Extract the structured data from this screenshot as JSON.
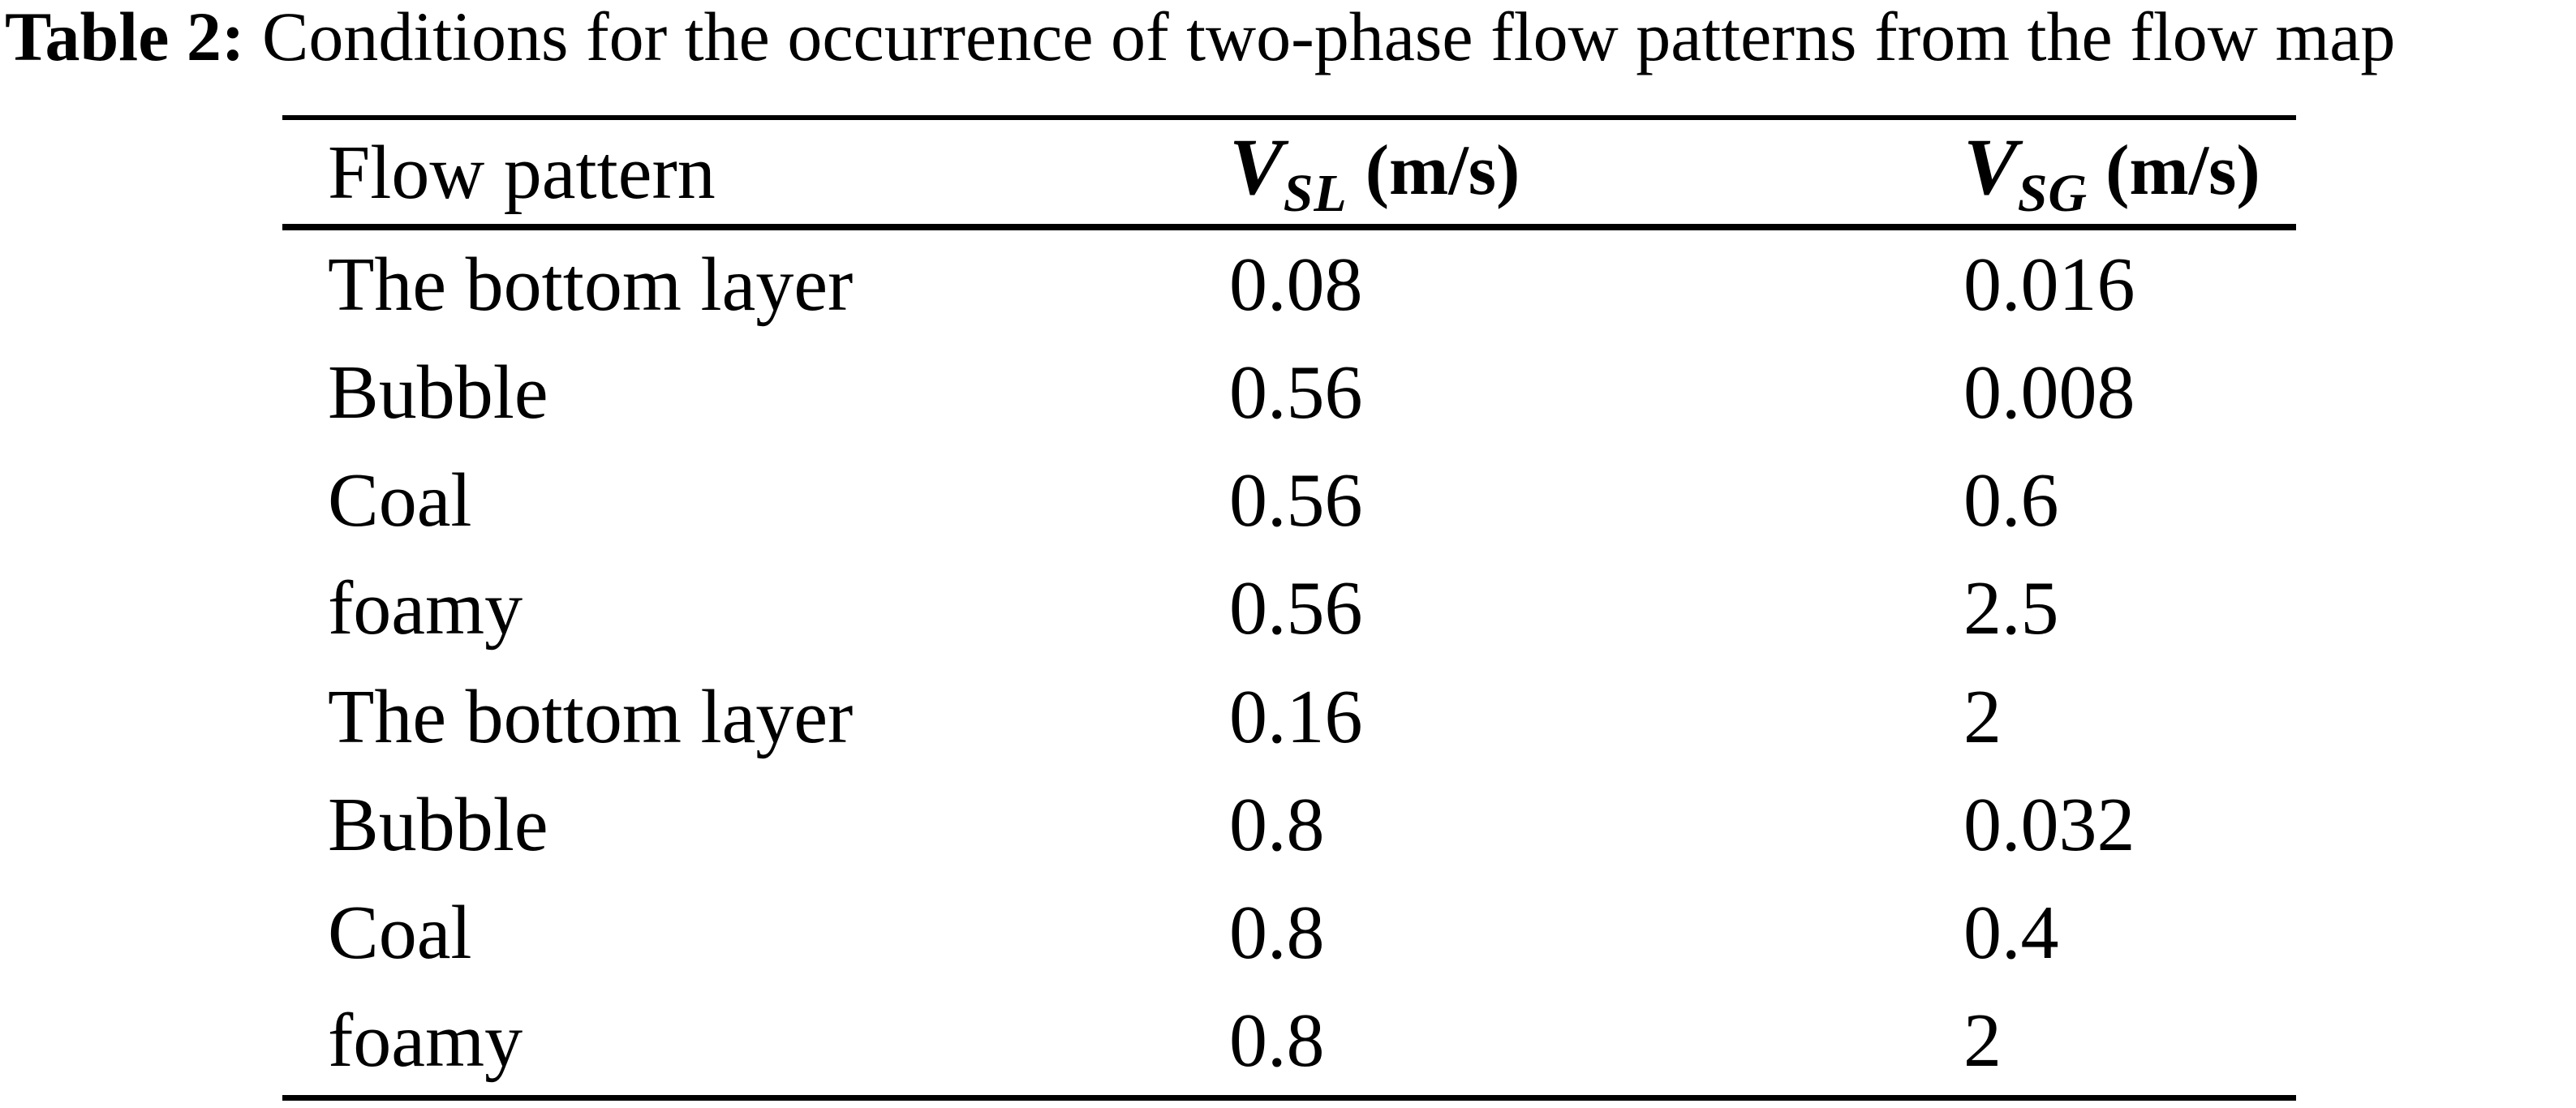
{
  "caption": {
    "label": "Table 2:",
    "text": " Conditions for the occurrence of two-phase flow patterns from the flow map"
  },
  "table": {
    "headers": {
      "col1": "Flow pattern",
      "col2": {
        "symbol": "V",
        "subscript": "SL",
        "unit": "(m/s)"
      },
      "col3": {
        "symbol": "V",
        "subscript": "SG",
        "unit": "(m/s)"
      }
    },
    "rows": [
      {
        "pattern": "The bottom layer",
        "vsl": "0.08",
        "vsg": "0.016"
      },
      {
        "pattern": "Bubble",
        "vsl": "0.56",
        "vsg": "0.008"
      },
      {
        "pattern": "Coal",
        "vsl": "0.56",
        "vsg": "0.6"
      },
      {
        "pattern": "foamy",
        "vsl": "0.56",
        "vsg": "2.5"
      },
      {
        "pattern": "The bottom layer",
        "vsl": "0.16",
        "vsg": "2"
      },
      {
        "pattern": "Bubble",
        "vsl": "0.8",
        "vsg": "0.032"
      },
      {
        "pattern": "Coal",
        "vsl": "0.8",
        "vsg": "0.4"
      },
      {
        "pattern": "foamy",
        "vsl": "0.8",
        "vsg": "2"
      }
    ]
  },
  "colors": {
    "text": "#000000",
    "background": "#ffffff",
    "rule": "#000000"
  },
  "chart_data": {
    "type": "table",
    "title": "Table 2: Conditions for the occurrence of two-phase flow patterns from the flow map",
    "columns": [
      "Flow pattern",
      "V_SL (m/s)",
      "V_SG (m/s)"
    ],
    "rows": [
      [
        "The bottom layer",
        0.08,
        0.016
      ],
      [
        "Bubble",
        0.56,
        0.008
      ],
      [
        "Coal",
        0.56,
        0.6
      ],
      [
        "foamy",
        0.56,
        2.5
      ],
      [
        "The bottom layer",
        0.16,
        2
      ],
      [
        "Bubble",
        0.8,
        0.032
      ],
      [
        "Coal",
        0.8,
        0.4
      ],
      [
        "foamy",
        0.8,
        2
      ]
    ]
  }
}
